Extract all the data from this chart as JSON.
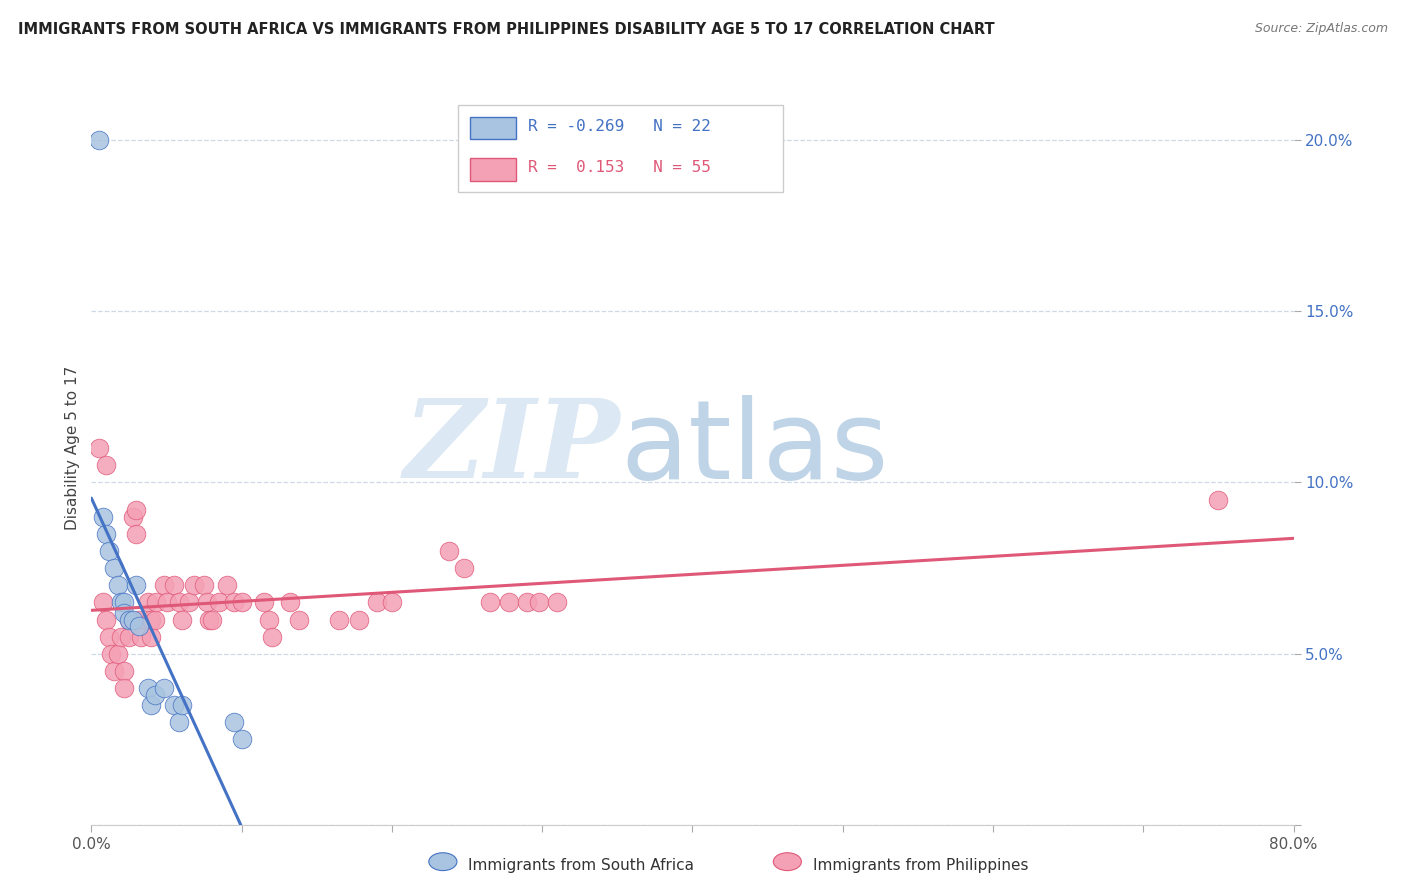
{
  "title": "IMMIGRANTS FROM SOUTH AFRICA VS IMMIGRANTS FROM PHILIPPINES DISABILITY AGE 5 TO 17 CORRELATION CHART",
  "source": "Source: ZipAtlas.com",
  "ylabel": "Disability Age 5 to 17",
  "xlim": [
    0.0,
    0.8
  ],
  "ylim": [
    0.0,
    0.22
  ],
  "yticks": [
    0.0,
    0.05,
    0.1,
    0.15,
    0.2
  ],
  "ytick_labels": [
    "",
    "5.0%",
    "10.0%",
    "15.0%",
    "20.0%"
  ],
  "xticks": [
    0.0,
    0.1,
    0.2,
    0.3,
    0.4,
    0.5,
    0.6,
    0.7,
    0.8
  ],
  "xtick_labels": [
    "0.0%",
    "",
    "",
    "",
    "",
    "",
    "",
    "",
    "80.0%"
  ],
  "color_sa": "#a8c4e0",
  "color_ph": "#f4a0b5",
  "line_sa": "#4472c4",
  "line_ph": "#e05878",
  "dashed_color": "#90b0d0",
  "sa_x": [
    0.005,
    0.008,
    0.01,
    0.012,
    0.015,
    0.018,
    0.02,
    0.022,
    0.022,
    0.025,
    0.028,
    0.03,
    0.032,
    0.038,
    0.04,
    0.042,
    0.048,
    0.055,
    0.058,
    0.06,
    0.095,
    0.1
  ],
  "sa_y": [
    0.2,
    0.09,
    0.085,
    0.08,
    0.075,
    0.07,
    0.065,
    0.065,
    0.062,
    0.06,
    0.06,
    0.07,
    0.058,
    0.04,
    0.035,
    0.038,
    0.04,
    0.035,
    0.03,
    0.035,
    0.03,
    0.025
  ],
  "ph_x": [
    0.005,
    0.008,
    0.01,
    0.012,
    0.013,
    0.015,
    0.018,
    0.02,
    0.022,
    0.022,
    0.025,
    0.025,
    0.028,
    0.03,
    0.03,
    0.032,
    0.033,
    0.038,
    0.04,
    0.04,
    0.042,
    0.043,
    0.048,
    0.05,
    0.055,
    0.058,
    0.06,
    0.065,
    0.068,
    0.075,
    0.077,
    0.078,
    0.08,
    0.085,
    0.09,
    0.095,
    0.1,
    0.115,
    0.118,
    0.12,
    0.132,
    0.138,
    0.165,
    0.178,
    0.19,
    0.2,
    0.238,
    0.248,
    0.265,
    0.278,
    0.29,
    0.298,
    0.31,
    0.75,
    0.01
  ],
  "ph_y": [
    0.11,
    0.065,
    0.06,
    0.055,
    0.05,
    0.045,
    0.05,
    0.055,
    0.045,
    0.04,
    0.06,
    0.055,
    0.09,
    0.085,
    0.092,
    0.06,
    0.055,
    0.065,
    0.06,
    0.055,
    0.06,
    0.065,
    0.07,
    0.065,
    0.07,
    0.065,
    0.06,
    0.065,
    0.07,
    0.07,
    0.065,
    0.06,
    0.06,
    0.065,
    0.07,
    0.065,
    0.065,
    0.065,
    0.06,
    0.055,
    0.065,
    0.06,
    0.06,
    0.06,
    0.065,
    0.065,
    0.08,
    0.075,
    0.065,
    0.065,
    0.065,
    0.065,
    0.065,
    0.095,
    0.105
  ],
  "background_color": "#ffffff",
  "grid_color": "#d0d8e8"
}
